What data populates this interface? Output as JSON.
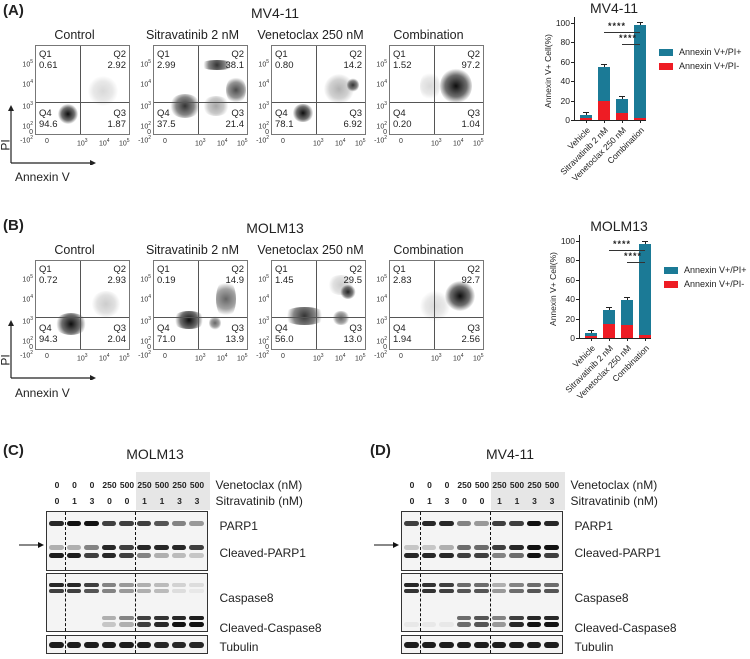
{
  "figure": {
    "panels": {
      "A": {
        "label": "(A)",
        "cell_line": "MV4-11"
      },
      "B": {
        "label": "(B)",
        "cell_line": "MOLM13"
      },
      "C": {
        "label": "(C)",
        "cell_line": "MOLM13"
      },
      "D": {
        "label": "(D)",
        "cell_line": "MV4-11"
      }
    },
    "flow_axes": {
      "x_label": "Annexin V",
      "y_label": "PI",
      "y_ticks": [
        "10^5",
        "10^4",
        "10^3",
        "10^2",
        "0",
        "-10^2"
      ],
      "x_ticks": [
        "0",
        "10^3",
        "10^4",
        "10^5"
      ]
    },
    "flow_titles": [
      "Control",
      "Sitravatinib 2 nM",
      "Venetoclax 250 nM",
      "Combination"
    ],
    "flow_A": [
      {
        "Q1": "0.61",
        "Q2": "2.92",
        "Q3": "1.87",
        "Q4": "94.6"
      },
      {
        "Q1": "2.99",
        "Q2": "38.1",
        "Q3": "21.4",
        "Q4": "37.5"
      },
      {
        "Q1": "0.80",
        "Q2": "14.2",
        "Q3": "6.92",
        "Q4": "78.1"
      },
      {
        "Q1": "1.52",
        "Q2": "97.2",
        "Q3": "1.04",
        "Q4": "0.20"
      }
    ],
    "flow_B": [
      {
        "Q1": "0.72",
        "Q2": "2.93",
        "Q3": "2.04",
        "Q4": "94.3"
      },
      {
        "Q1": "0.19",
        "Q2": "14.9",
        "Q3": "13.9",
        "Q4": "71.0"
      },
      {
        "Q1": "1.45",
        "Q2": "29.5",
        "Q3": "13.0",
        "Q4": "56.0"
      },
      {
        "Q1": "2.83",
        "Q2": "92.7",
        "Q3": "2.56",
        "Q4": "1.94"
      }
    ],
    "quadrant_names": {
      "Q1": "Q1",
      "Q2": "Q2",
      "Q3": "Q3",
      "Q4": "Q4"
    },
    "western": {
      "venetoclax_label": "Venetoclax (nM)",
      "sitravatinib_label": "Sitravatinib (nM)",
      "venetoclax": [
        "0",
        "0",
        "0",
        "250",
        "500",
        "250",
        "500",
        "250",
        "500"
      ],
      "sitravatinib": [
        "0",
        "1",
        "3",
        "0",
        "0",
        "1",
        "1",
        "3",
        "3"
      ],
      "bands": [
        "PARP1",
        "Cleaved-PARP1",
        "Caspase8",
        "Cleaved-Caspase8",
        "Tubulin"
      ]
    },
    "colors": {
      "pi_pos": "#1b7a96",
      "pi_neg": "#ee1c24"
    }
  },
  "chart_data": [
    {
      "type": "bar",
      "title": "MV4-11",
      "categories": [
        "Vehicle",
        "Sitravatinib 2 nM",
        "Venetoclax 250 nM",
        "Combination"
      ],
      "stacked": true,
      "series": [
        {
          "name": "Annexin V+/PI-",
          "color": "#ee1c24",
          "values": [
            2,
            20,
            7,
            2
          ]
        },
        {
          "name": "Annexin V+/PI+",
          "color": "#1b7a96",
          "values": [
            3,
            35,
            15,
            96
          ]
        }
      ],
      "totals": [
        5,
        55,
        22,
        98
      ],
      "ylabel": "Annexin V+ Cell(%)",
      "yticks": [
        "0",
        "20",
        "40",
        "60",
        "80",
        "100"
      ],
      "ylim": [
        0,
        100
      ],
      "significance": [
        {
          "from": "Sitravatinib 2 nM",
          "to": "Combination",
          "label": "****"
        },
        {
          "from": "Venetoclax 250 nM",
          "to": "Combination",
          "label": "****"
        }
      ],
      "legend": [
        "Annexin V+/PI+",
        "Annexin V+/PI-"
      ]
    },
    {
      "type": "bar",
      "title": "MOLM13",
      "categories": [
        "Vehicle",
        "Sitravatinib 2 nM",
        "Venetoclax 250 nM",
        "Combination"
      ],
      "stacked": true,
      "series": [
        {
          "name": "Annexin V+/PI-",
          "color": "#ee1c24",
          "values": [
            2,
            14,
            13,
            3
          ]
        },
        {
          "name": "Annexin V+/PI+",
          "color": "#1b7a96",
          "values": [
            3,
            15,
            26,
            94
          ]
        }
      ],
      "totals": [
        5,
        29,
        39,
        97
      ],
      "ylabel": "Annexin V+ Cell(%)",
      "yticks": [
        "0",
        "20",
        "40",
        "60",
        "80",
        "100"
      ],
      "ylim": [
        0,
        100
      ],
      "significance": [
        {
          "from": "Sitravatinib 2 nM",
          "to": "Combination",
          "label": "****"
        },
        {
          "from": "Venetoclax 250 nM",
          "to": "Combination",
          "label": "****"
        }
      ],
      "legend": [
        "Annexin V+/PI+",
        "Annexin V+/PI-"
      ]
    }
  ]
}
